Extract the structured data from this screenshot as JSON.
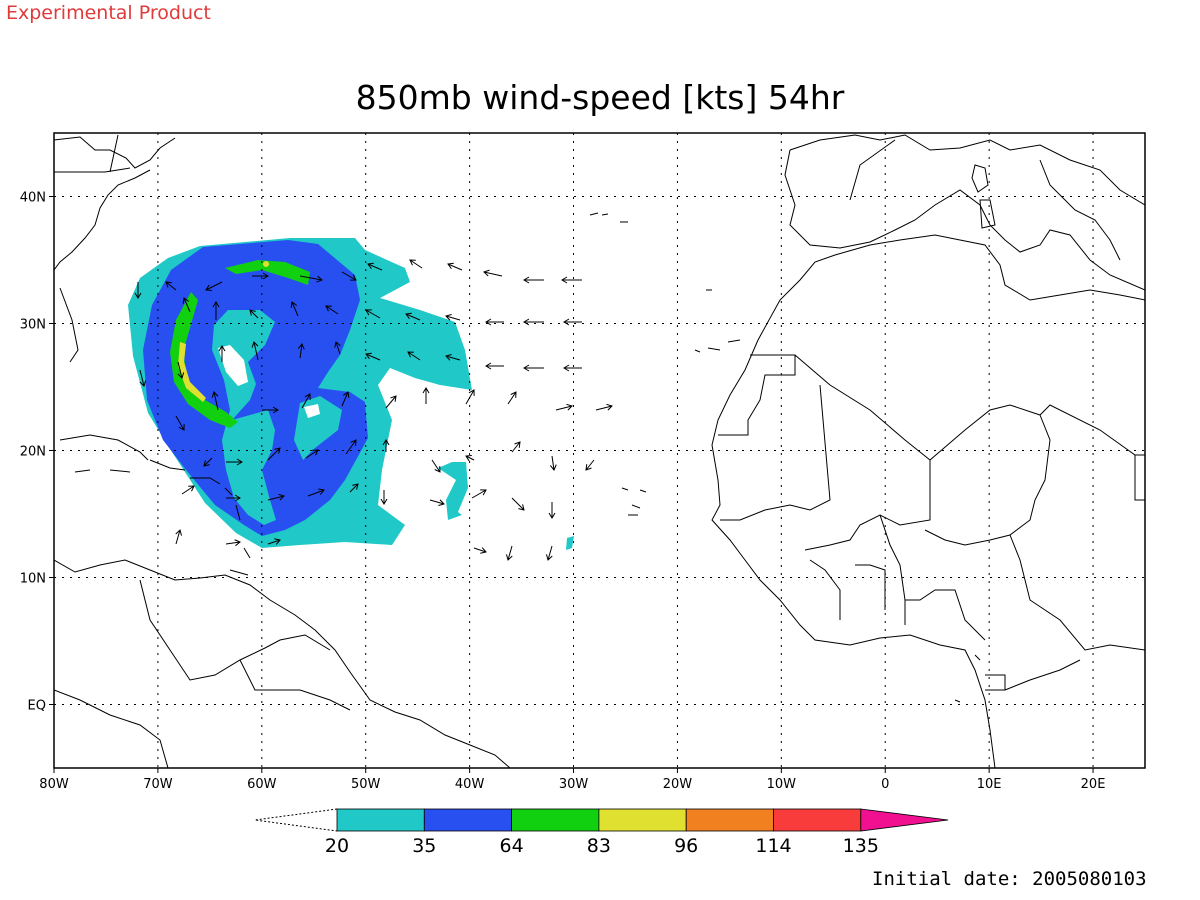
{
  "header": {
    "stamp": "Experimental Product"
  },
  "map": {
    "title": "850mb wind-speed [kts] 54hr",
    "lon_range": [
      -80,
      25
    ],
    "lat_range": [
      -5,
      45
    ],
    "lon_ticks": [
      {
        "value": -80,
        "label": "80W"
      },
      {
        "value": -70,
        "label": "70W"
      },
      {
        "value": -60,
        "label": "60W"
      },
      {
        "value": -50,
        "label": "50W"
      },
      {
        "value": -40,
        "label": "40W"
      },
      {
        "value": -30,
        "label": "30W"
      },
      {
        "value": -20,
        "label": "20W"
      },
      {
        "value": -10,
        "label": "10W"
      },
      {
        "value": 0,
        "label": "0"
      },
      {
        "value": 10,
        "label": "10E"
      },
      {
        "value": 20,
        "label": "20E"
      }
    ],
    "lat_ticks": [
      {
        "value": 40,
        "label": "40N"
      },
      {
        "value": 30,
        "label": "30N"
      },
      {
        "value": 20,
        "label": "20N"
      },
      {
        "value": 10,
        "label": "10N"
      },
      {
        "value": 0,
        "label": "EQ"
      }
    ],
    "grid": true
  },
  "colorbar": {
    "levels": [
      "20",
      "35",
      "64",
      "83",
      "96",
      "114",
      "135"
    ],
    "colors": [
      "#20c8c8",
      "#2850f0",
      "#10d010",
      "#e0e030",
      "#f08020",
      "#f83c3c",
      "#f01090"
    ],
    "units": "kts"
  },
  "footer": {
    "initial_date": "Initial date: 2005080103"
  }
}
